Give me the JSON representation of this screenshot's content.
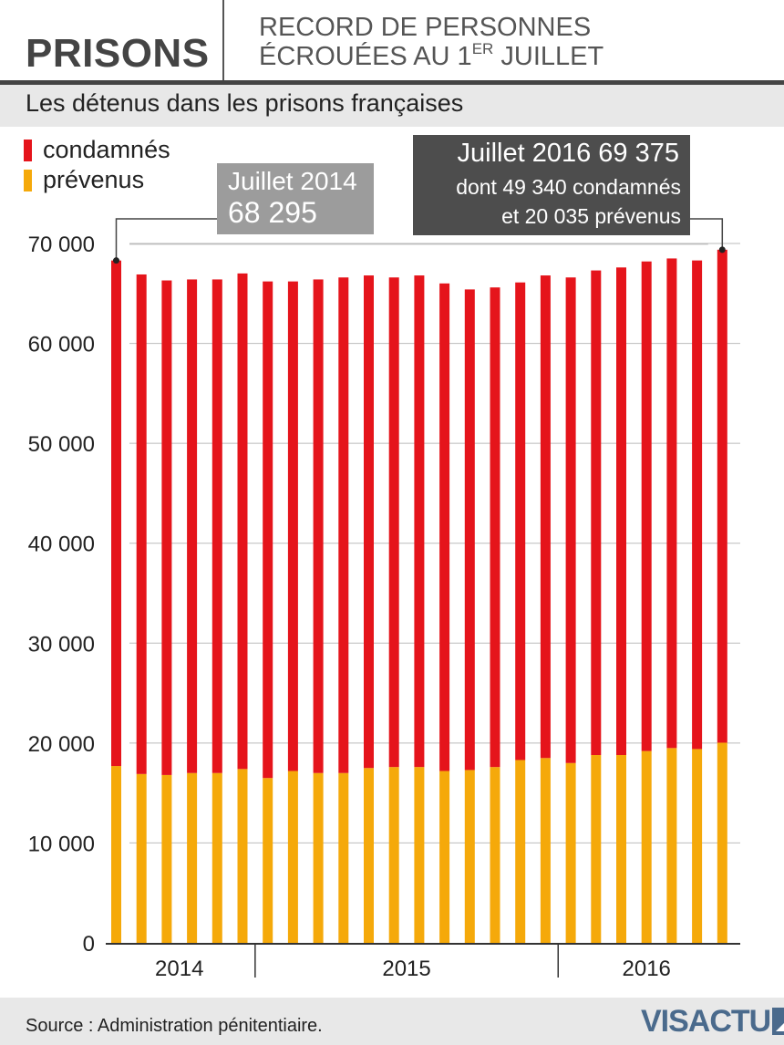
{
  "header": {
    "kicker": "PRISONS",
    "headline_line1": "RECORD DE PERSONNES",
    "headline_line2_pre": "ÉCROUÉES AU 1",
    "headline_line2_sup": "ER",
    "headline_line2_post": " JUILLET"
  },
  "subtitle": "Les détenus dans les prisons françaises",
  "callouts": {
    "c2014_line1": "Juillet 2014",
    "c2014_line2": "68 295",
    "c2016_line1": "Juillet 2016  69 375",
    "c2016_line2": "dont 49 340 condamnés",
    "c2016_line3": "et 20 035 prévenus"
  },
  "footer": {
    "source": "Source : Administration pénitentiaire.",
    "logo": "VISACTU"
  },
  "colors": {
    "condamnes": "#e5141b",
    "prevenus": "#f5a90a",
    "grid": "#bbbbbb",
    "axis": "#333333"
  },
  "chart_data": {
    "type": "bar",
    "stacked": true,
    "title": "Les détenus dans les prisons françaises",
    "ylim": [
      0,
      70000
    ],
    "yticks": [
      0,
      10000,
      20000,
      30000,
      40000,
      50000,
      60000,
      70000
    ],
    "ytick_labels": [
      "0",
      "10 000",
      "20 000",
      "30 000",
      "40 000",
      "50 000",
      "60 000",
      "70 000"
    ],
    "grid": true,
    "legend_position": "top-left",
    "x_groups": [
      {
        "label": "2014",
        "bars": 6
      },
      {
        "label": "2015",
        "bars": 12
      },
      {
        "label": "2016",
        "bars": 7
      }
    ],
    "categories": [
      "2014-07",
      "2014-08",
      "2014-09",
      "2014-10",
      "2014-11",
      "2014-12",
      "2015-01",
      "2015-02",
      "2015-03",
      "2015-04",
      "2015-05",
      "2015-06",
      "2015-07",
      "2015-08",
      "2015-09",
      "2015-10",
      "2015-11",
      "2015-12",
      "2016-01",
      "2016-02",
      "2016-03",
      "2016-04",
      "2016-05",
      "2016-06",
      "2016-07"
    ],
    "series": [
      {
        "name": "prévenus",
        "color": "#f5a90a",
        "values": [
          17700,
          16900,
          16800,
          17000,
          17000,
          17400,
          16500,
          17200,
          17000,
          17000,
          17500,
          17600,
          17600,
          17200,
          17300,
          17600,
          18300,
          18500,
          18000,
          18800,
          18800,
          19200,
          19500,
          19400,
          20035
        ]
      },
      {
        "name": "condamnés",
        "color": "#e5141b",
        "values": [
          50595,
          50000,
          49500,
          49400,
          49400,
          49600,
          49700,
          49000,
          49400,
          49600,
          49300,
          49000,
          49200,
          48800,
          48100,
          48000,
          47800,
          48300,
          48600,
          48500,
          48800,
          49000,
          49000,
          48900,
          49340
        ]
      }
    ],
    "totals": [
      68295,
      66900,
      66300,
      66400,
      66400,
      67000,
      66200,
      66200,
      66400,
      66600,
      66800,
      66600,
      66800,
      66000,
      65400,
      65600,
      66100,
      66800,
      66600,
      67300,
      67600,
      68200,
      68500,
      68300,
      69375
    ]
  }
}
